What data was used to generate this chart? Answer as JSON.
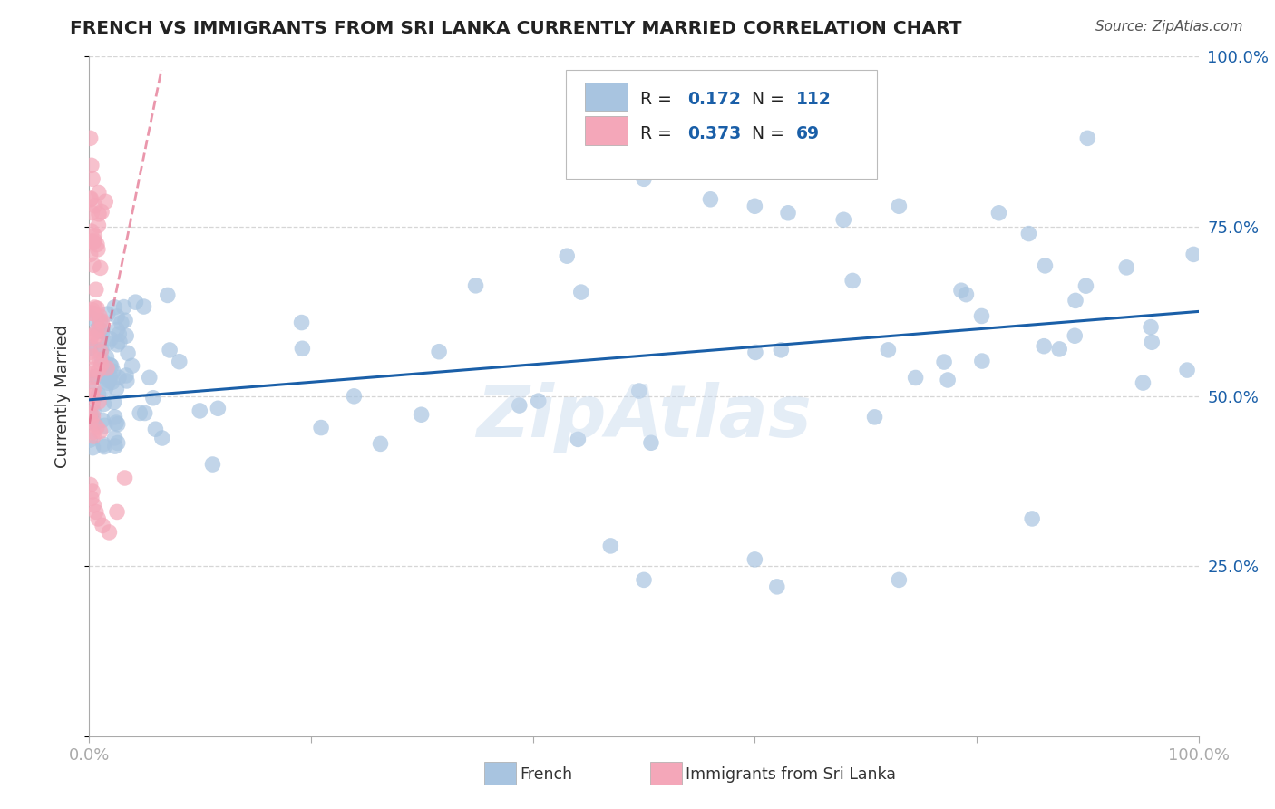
{
  "title": "FRENCH VS IMMIGRANTS FROM SRI LANKA CURRENTLY MARRIED CORRELATION CHART",
  "source": "Source: ZipAtlas.com",
  "ylabel": "Currently Married",
  "xlim": [
    0.0,
    1.0
  ],
  "ylim": [
    0.0,
    1.0
  ],
  "watermark": "ZipAtlas",
  "blue_color": "#a8c4e0",
  "pink_color": "#f4a7b9",
  "blue_line_color": "#1a5fa8",
  "pink_line_color": "#e06080",
  "grid_color": "#cccccc",
  "title_color": "#222222",
  "axis_label_color": "#1a5fa8",
  "blue_trend_x": [
    0.0,
    1.0
  ],
  "blue_trend_y": [
    0.495,
    0.625
  ],
  "pink_trend_x": [
    0.0,
    0.065
  ],
  "pink_trend_y": [
    0.46,
    0.98
  ]
}
